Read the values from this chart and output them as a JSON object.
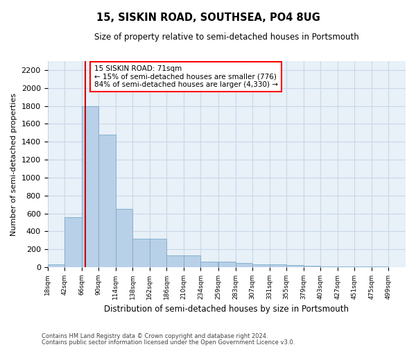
{
  "title": "15, SISKIN ROAD, SOUTHSEA, PO4 8UG",
  "subtitle": "Size of property relative to semi-detached houses in Portsmouth",
  "xlabel": "Distribution of semi-detached houses by size in Portsmouth",
  "ylabel": "Number of semi-detached properties",
  "footnote1": "Contains HM Land Registry data © Crown copyright and database right 2024.",
  "footnote2": "Contains public sector information licensed under the Open Government Licence v3.0.",
  "property_size": 71,
  "annotation_line1": "15 SISKIN ROAD: 71sqm",
  "annotation_line2": "← 15% of semi-detached houses are smaller (776)",
  "annotation_line3": "84% of semi-detached houses are larger (4,330) →",
  "bar_color": "#b8d0e8",
  "bar_edge_color": "#7aaac8",
  "red_line_color": "#cc0000",
  "grid_color": "#c8d8e8",
  "background_color": "#e8f0f8",
  "bins": [
    18,
    42,
    66,
    90,
    114,
    138,
    162,
    186,
    210,
    234,
    259,
    283,
    307,
    331,
    355,
    379,
    403,
    427,
    451,
    475,
    499
  ],
  "values": [
    35,
    560,
    1800,
    1480,
    650,
    320,
    320,
    130,
    130,
    65,
    60,
    45,
    35,
    30,
    25,
    15,
    12,
    10,
    8,
    5,
    3
  ],
  "ylim": [
    0,
    2300
  ],
  "yticks": [
    0,
    200,
    400,
    600,
    800,
    1000,
    1200,
    1400,
    1600,
    1800,
    2000,
    2200
  ],
  "bin_width": 24
}
